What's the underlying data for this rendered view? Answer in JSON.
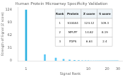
{
  "chart_data": {
    "type": "bar",
    "title": "Human Protein Microarray Specificity Validation",
    "xlabel": "Signal Rank",
    "ylabel": "Strength of Signal (Z score)",
    "x": [
      1,
      2,
      3,
      4,
      5,
      6,
      7,
      8,
      9,
      10,
      11,
      12,
      13,
      14,
      15,
      16,
      17,
      18,
      19,
      20,
      21,
      22,
      23,
      24,
      25,
      26,
      27,
      28,
      29,
      30
    ],
    "values": [
      124.12,
      14.82,
      6.63,
      3.6465,
      2.005575,
      1.10306625,
      0.6066864375,
      0.333677540625,
      0.18352264734375,
      0.1009374560390625,
      0.05551560082148437,
      0.030533580451816405,
      0.016793469248499022,
      0.009236408086674463,
      0.005080024447670955,
      0.002794013446219025,
      0.0015367073954204637,
      0.0008451890674811251,
      0.00046485398711469027,
      0.00025566969291307965,
      0.0001406183311021938,
      7.73400821062066e-05,
      4.25370451584136e-05,
      2.33953748371275e-05,
      1.28674561604201e-05,
      7.07710088823107e-06,
      3.89240548852709e-06,
      2.1408230186899e-06,
      1.17745266027944e-06,
      6.4759896315369e-07
    ],
    "colors": [
      "#2ab0e0",
      "#5bc8f5",
      "#5bc8f5",
      "#5bc8f5",
      "#5bc8f5",
      "#5bc8f5",
      "#5bc8f5",
      "#5bc8f5",
      "#5bc8f5",
      "#5bc8f5",
      "#5bc8f5",
      "#5bc8f5",
      "#5bc8f5",
      "#5bc8f5",
      "#5bc8f5",
      "#5bc8f5",
      "#5bc8f5",
      "#5bc8f5",
      "#5bc8f5",
      "#5bc8f5",
      "#5bc8f5",
      "#5bc8f5",
      "#5bc8f5",
      "#5bc8f5",
      "#5bc8f5",
      "#5bc8f5",
      "#5bc8f5",
      "#5bc8f5",
      "#5bc8f5",
      "#5bc8f5"
    ],
    "log": "x",
    "xlim": [
      0.75,
      35
    ],
    "xticks": [
      1,
      10,
      20,
      30
    ],
    "ylim": [
      0,
      130
    ],
    "yticks": [
      0,
      31,
      62,
      93,
      124
    ],
    "grid": false,
    "table": {
      "headers": [
        "Rank",
        "Protein",
        "Z score",
        "S score"
      ],
      "rows": [
        [
          "1",
          "S100A4",
          "124.12",
          "109.3"
        ],
        [
          "2",
          "MPLPF",
          "14.82",
          "8.19"
        ],
        [
          "3",
          "FDPS",
          "6.63",
          "2.4"
        ]
      ]
    }
  }
}
